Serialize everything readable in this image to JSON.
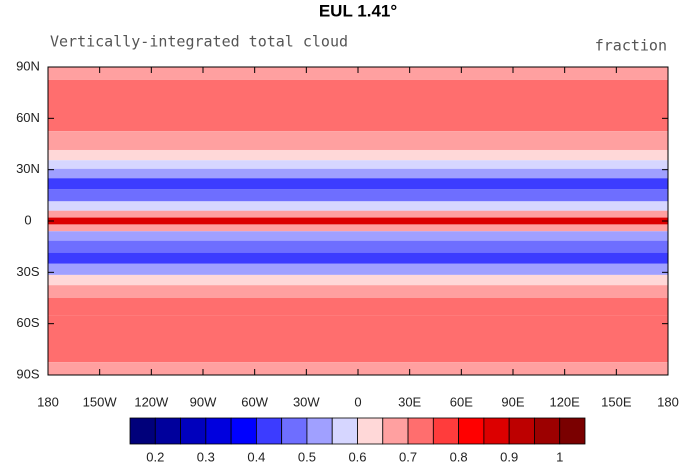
{
  "chart_data": {
    "type": "zonal-contour",
    "title": "EUL    1.41°",
    "left_string": "Vertically-integrated total cloud",
    "right_string": "fraction",
    "lats": [
      90,
      75,
      60,
      45,
      38,
      33,
      28,
      22,
      15,
      8,
      4,
      0,
      -4,
      -8,
      -15,
      -22,
      -28,
      -35,
      -40,
      -50,
      -60,
      -75,
      -90
    ],
    "values": [
      0.68,
      0.7,
      0.72,
      0.68,
      0.6,
      0.55,
      0.5,
      0.42,
      0.48,
      0.55,
      0.65,
      0.85,
      0.65,
      0.5,
      0.45,
      0.42,
      0.5,
      0.6,
      0.67,
      0.7,
      0.72,
      0.7,
      0.67
    ],
    "xlim": [
      -180,
      180
    ],
    "xticks": [
      {
        "value": -180,
        "label": "180"
      },
      {
        "value": -150,
        "label": "150W"
      },
      {
        "value": -120,
        "label": "120W"
      },
      {
        "value": -90,
        "label": "90W"
      },
      {
        "value": -60,
        "label": "60W"
      },
      {
        "value": -30,
        "label": "30W"
      },
      0,
      {
        "value": 30,
        "label": "30E"
      },
      {
        "value": 60,
        "label": "60E"
      },
      {
        "value": 90,
        "label": "90E"
      },
      {
        "value": 120,
        "label": "120E"
      },
      {
        "value": 150,
        "label": "150E"
      },
      {
        "value": 180,
        "label": "180"
      }
    ],
    "ylim": [
      -90,
      90
    ],
    "yticks": [
      {
        "value": 90,
        "label": "90N"
      },
      {
        "value": 60,
        "label": "60N"
      },
      {
        "value": 30,
        "label": "30N"
      },
      0,
      {
        "value": -30,
        "label": "30S"
      },
      {
        "value": -60,
        "label": "60S"
      },
      {
        "value": -90,
        "label": "90S"
      }
    ],
    "colorbar": {
      "levels": [
        0.2,
        0.25,
        0.3,
        0.35,
        0.4,
        0.45,
        0.5,
        0.55,
        0.6,
        0.65,
        0.7,
        0.75,
        0.8,
        0.85,
        0.9,
        0.95,
        1
      ],
      "colors": [
        "#00007a",
        "#00009c",
        "#0000bd",
        "#0000de",
        "#0000ff",
        "#3c3cff",
        "#6e6eff",
        "#a0a0ff",
        "#d6d6ff",
        "#ffd8d8",
        "#ffa0a0",
        "#ff6e6e",
        "#ff3c3c",
        "#ff0000",
        "#dc0000",
        "#bd0000",
        "#9c0000",
        "#7a0000"
      ],
      "ticks": [
        0.2,
        0.3,
        0.4,
        0.5,
        0.6,
        0.7,
        0.8,
        0.9,
        1
      ]
    }
  }
}
